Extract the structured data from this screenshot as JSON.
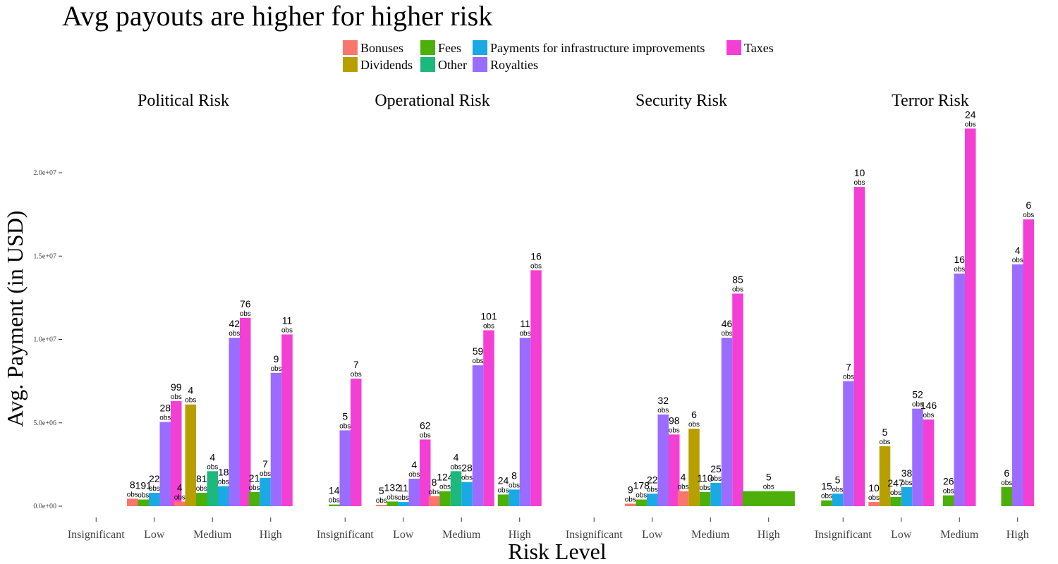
{
  "chart_data": {
    "type": "bar",
    "title": "Avg payouts are higher for higher risk",
    "xlabel": "Risk Level",
    "ylabel": "Avg. Payment (in USD)",
    "ylim": [
      -500000,
      23200000
    ],
    "yticks": [
      {
        "value": 0,
        "label": "0.0e+00"
      },
      {
        "value": 5000000,
        "label": "5.0e+06"
      },
      {
        "value": 10000000,
        "label": "1.0e+07"
      },
      {
        "value": 15000000,
        "label": "1.5e+07"
      },
      {
        "value": 20000000,
        "label": "2.0e+07"
      }
    ],
    "grid": false,
    "legend_position": "top",
    "categories": [
      "Insignificant",
      "Low",
      "Medium",
      "High"
    ],
    "obs_suffix": "obs",
    "series_legend": [
      {
        "name": "Bonuses",
        "color": "#F8766D"
      },
      {
        "name": "Dividends",
        "color": "#B79F00"
      },
      {
        "name": "Fees",
        "color": "#4DAF0A"
      },
      {
        "name": "Other",
        "color": "#1CB87E"
      },
      {
        "name": "Payments for infrastructure improvements",
        "color": "#1AA9E5"
      },
      {
        "name": "Royalties",
        "color": "#9A6CFF"
      },
      {
        "name": "Taxes",
        "color": "#F43FD4"
      }
    ],
    "facets": [
      {
        "name": "Political Risk",
        "groups": [
          {
            "category": "Insignificant",
            "bars": []
          },
          {
            "category": "Low",
            "bars": [
              {
                "series": "Bonuses",
                "value": 450000,
                "obs": "8"
              },
              {
                "series": "Fees",
                "value": 400000,
                "obs": "191"
              },
              {
                "series": "Payments for infrastructure improvements",
                "value": 800000,
                "obs": "22"
              },
              {
                "series": "Royalties",
                "value": 5050000,
                "obs": "28"
              },
              {
                "series": "Taxes",
                "value": 6300000,
                "obs": "99"
              }
            ]
          },
          {
            "category": "Medium",
            "bars": [
              {
                "series": "Bonuses",
                "value": 280000,
                "obs": "4"
              },
              {
                "series": "Dividends",
                "value": 6100000,
                "obs": "4"
              },
              {
                "series": "Fees",
                "value": 800000,
                "obs": "81"
              },
              {
                "series": "Other",
                "value": 2100000,
                "obs": "4"
              },
              {
                "series": "Payments for infrastructure improvements",
                "value": 1200000,
                "obs": "18"
              },
              {
                "series": "Royalties",
                "value": 10100000,
                "obs": "42"
              },
              {
                "series": "Taxes",
                "value": 11300000,
                "obs": "76"
              }
            ]
          },
          {
            "category": "High",
            "bars": [
              {
                "series": "Fees",
                "value": 850000,
                "obs": "21"
              },
              {
                "series": "Payments for infrastructure improvements",
                "value": 1700000,
                "obs": "7"
              },
              {
                "series": "Royalties",
                "value": 8000000,
                "obs": "9"
              },
              {
                "series": "Taxes",
                "value": 10300000,
                "obs": "11"
              }
            ]
          }
        ]
      },
      {
        "name": "Operational Risk",
        "groups": [
          {
            "category": "Insignificant",
            "bars": [
              {
                "series": "Fees",
                "value": 100000,
                "obs": "14"
              },
              {
                "series": "Royalties",
                "value": 4550000,
                "obs": "5"
              },
              {
                "series": "Taxes",
                "value": 7650000,
                "obs": "7"
              }
            ]
          },
          {
            "category": "Low",
            "bars": [
              {
                "series": "Bonuses",
                "value": 80000,
                "obs": "5"
              },
              {
                "series": "Fees",
                "value": 280000,
                "obs": "132"
              },
              {
                "series": "Payments for infrastructure improvements",
                "value": 250000,
                "obs": "11"
              },
              {
                "series": "Royalties",
                "value": 1650000,
                "obs": "4"
              },
              {
                "series": "Taxes",
                "value": 4000000,
                "obs": "62"
              }
            ]
          },
          {
            "category": "Medium",
            "bars": [
              {
                "series": "Bonuses",
                "value": 600000,
                "obs": "8"
              },
              {
                "series": "Fees",
                "value": 900000,
                "obs": "124"
              },
              {
                "series": "Other",
                "value": 2100000,
                "obs": "4"
              },
              {
                "series": "Payments for infrastructure improvements",
                "value": 1450000,
                "obs": "28"
              },
              {
                "series": "Royalties",
                "value": 8450000,
                "obs": "59"
              },
              {
                "series": "Taxes",
                "value": 10550000,
                "obs": "101"
              }
            ]
          },
          {
            "category": "High",
            "bars": [
              {
                "series": "Fees",
                "value": 700000,
                "obs": "24"
              },
              {
                "series": "Payments for infrastructure improvements",
                "value": 1000000,
                "obs": "8"
              },
              {
                "series": "Royalties",
                "value": 10100000,
                "obs": "11"
              },
              {
                "series": "Taxes",
                "value": 14150000,
                "obs": "16"
              }
            ]
          }
        ]
      },
      {
        "name": "Security Risk",
        "groups": [
          {
            "category": "Insignificant",
            "bars": []
          },
          {
            "category": "Low",
            "bars": [
              {
                "series": "Bonuses",
                "value": 150000,
                "obs": "9"
              },
              {
                "series": "Fees",
                "value": 400000,
                "obs": "178"
              },
              {
                "series": "Payments for infrastructure improvements",
                "value": 750000,
                "obs": "22"
              },
              {
                "series": "Royalties",
                "value": 5500000,
                "obs": "32"
              },
              {
                "series": "Taxes",
                "value": 4300000,
                "obs": "98"
              }
            ]
          },
          {
            "category": "Medium",
            "bars": [
              {
                "series": "Bonuses",
                "value": 900000,
                "obs": "4"
              },
              {
                "series": "Dividends",
                "value": 4650000,
                "obs": "6"
              },
              {
                "series": "Fees",
                "value": 850000,
                "obs": "110"
              },
              {
                "series": "Payments for infrastructure improvements",
                "value": 1400000,
                "obs": "25"
              },
              {
                "series": "Royalties",
                "value": 10100000,
                "obs": "46"
              },
              {
                "series": "Taxes",
                "value": 12750000,
                "obs": "85"
              }
            ]
          },
          {
            "category": "High",
            "bars": [
              {
                "series": "Fees",
                "value": 900000,
                "obs": "5"
              }
            ]
          }
        ]
      },
      {
        "name": "Terror Risk",
        "groups": [
          {
            "category": "Insignificant",
            "bars": [
              {
                "series": "Fees",
                "value": 350000,
                "obs": "15"
              },
              {
                "series": "Payments for infrastructure improvements",
                "value": 750000,
                "obs": "5"
              },
              {
                "series": "Royalties",
                "value": 7500000,
                "obs": "7"
              },
              {
                "series": "Taxes",
                "value": 19150000,
                "obs": "10"
              }
            ]
          },
          {
            "category": "Low",
            "bars": [
              {
                "series": "Bonuses",
                "value": 250000,
                "obs": "10"
              },
              {
                "series": "Dividends",
                "value": 3600000,
                "obs": "5"
              },
              {
                "series": "Fees",
                "value": 550000,
                "obs": "247"
              },
              {
                "series": "Payments for infrastructure improvements",
                "value": 1150000,
                "obs": "38"
              },
              {
                "series": "Royalties",
                "value": 5850000,
                "obs": "52"
              },
              {
                "series": "Taxes",
                "value": 5200000,
                "obs": "146"
              }
            ]
          },
          {
            "category": "Medium",
            "bars": [
              {
                "series": "Fees",
                "value": 650000,
                "obs": "26"
              },
              {
                "series": "Royalties",
                "value": 13950000,
                "obs": "16"
              },
              {
                "series": "Taxes",
                "value": 22650000,
                "obs": "24"
              }
            ]
          },
          {
            "category": "High",
            "bars": [
              {
                "series": "Fees",
                "value": 1150000,
                "obs": "6"
              },
              {
                "series": "Royalties",
                "value": 14500000,
                "obs": "4"
              },
              {
                "series": "Taxes",
                "value": 17200000,
                "obs": "6"
              }
            ]
          }
        ]
      }
    ]
  }
}
